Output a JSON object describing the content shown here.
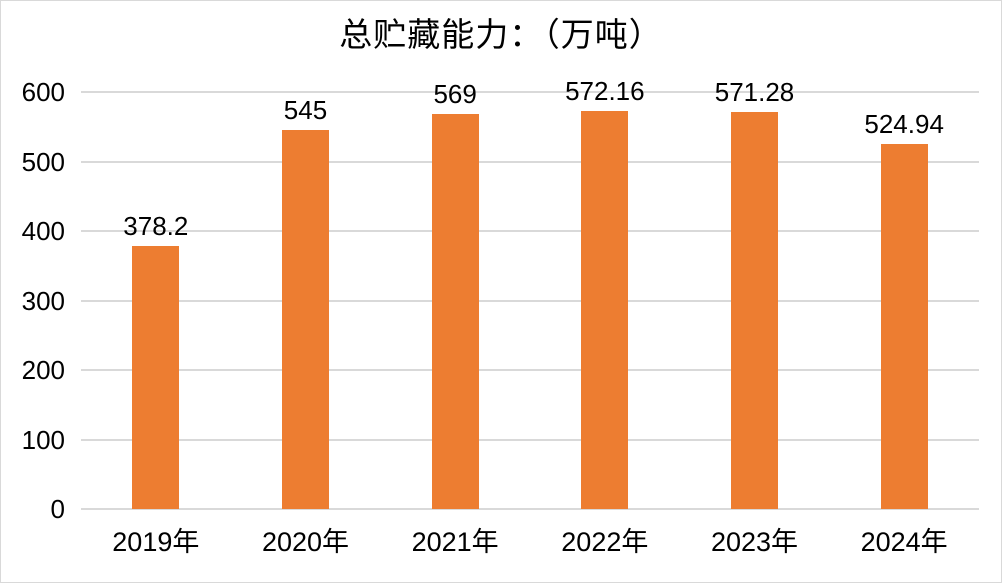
{
  "chart_data": {
    "type": "bar",
    "title": "总贮藏能力：（万吨）",
    "categories": [
      "2019年",
      "2020年",
      "2021年",
      "2022年",
      "2023年",
      "2024年"
    ],
    "values": [
      378.2,
      545,
      569,
      572.16,
      571.28,
      524.94
    ],
    "value_labels": [
      "378.2",
      "545",
      "569",
      "572.16",
      "571.28",
      "524.94"
    ],
    "xlabel": "",
    "ylabel": "",
    "ylim": [
      0,
      600
    ],
    "ytick_step": 100,
    "ytick_labels": [
      "0",
      "100",
      "200",
      "300",
      "400",
      "500",
      "600"
    ],
    "grid": true,
    "legend_position": "none",
    "colors": {
      "bar": "#ed7d31",
      "gridline": "#d9d9d9",
      "border": "#d9d9d9",
      "text": "#000000",
      "background": "#ffffff"
    }
  }
}
